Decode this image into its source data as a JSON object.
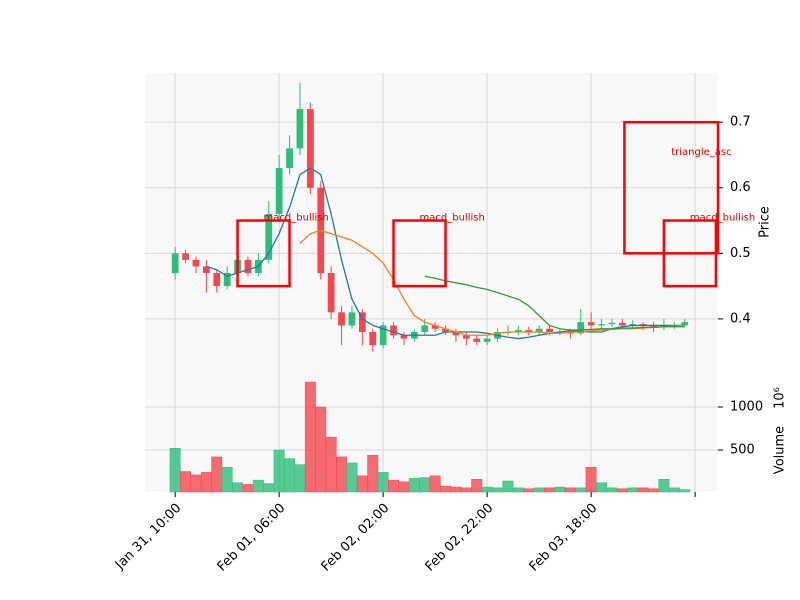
{
  "chart_data": {
    "type": "candlestick",
    "up_color": "#2ebd7a",
    "down_color": "#f5474f",
    "xlim": [
      -2.9,
      52.2
    ],
    "xticks": [
      {
        "value": 0,
        "label": "Jan 31, 10:00"
      },
      {
        "value": 10,
        "label": "Feb 01, 06:00"
      },
      {
        "value": 20,
        "label": "Feb 02, 02:00"
      },
      {
        "value": 30,
        "label": "Feb 02, 22:00"
      },
      {
        "value": 40,
        "label": "Feb 03, 18:00"
      },
      {
        "value": 50,
        "label": null
      }
    ],
    "ylabel": "Price",
    "ylim": [
      0.319,
      0.775
    ],
    "yticks": [
      0.4,
      0.5,
      0.6,
      0.7
    ],
    "volume_label": "Volume",
    "volume_offset_label": "10⁶",
    "volume_ylim": [
      12,
      1407
    ],
    "volume_yticks": [
      500,
      1000
    ],
    "grid": true,
    "open": [
      0.47,
      0.5,
      0.49,
      0.48,
      0.47,
      0.45,
      0.47,
      0.49,
      0.47,
      0.49,
      0.56,
      0.63,
      0.66,
      0.72,
      0.6,
      0.47,
      0.41,
      0.39,
      0.41,
      0.38,
      0.36,
      0.39,
      0.375,
      0.37,
      0.38,
      0.39,
      0.385,
      0.38,
      0.375,
      0.37,
      0.365,
      0.37,
      0.38,
      0.38,
      0.383,
      0.38,
      0.385,
      0.38,
      0.38,
      0.378,
      0.395,
      0.39,
      0.392,
      0.394,
      0.39,
      0.392,
      0.39,
      0.388,
      0.39,
      0.39
    ],
    "high": [
      0.51,
      0.505,
      0.495,
      0.49,
      0.475,
      0.48,
      0.5,
      0.495,
      0.5,
      0.58,
      0.65,
      0.68,
      0.76,
      0.73,
      0.61,
      0.48,
      0.42,
      0.42,
      0.415,
      0.385,
      0.395,
      0.395,
      0.38,
      0.385,
      0.4,
      0.395,
      0.39,
      0.385,
      0.38,
      0.375,
      0.375,
      0.385,
      0.39,
      0.39,
      0.388,
      0.39,
      0.39,
      0.385,
      0.385,
      0.415,
      0.41,
      0.4,
      0.4,
      0.4,
      0.398,
      0.395,
      0.395,
      0.4,
      0.395,
      0.4
    ],
    "low": [
      0.46,
      0.485,
      0.47,
      0.44,
      0.44,
      0.445,
      0.465,
      0.465,
      0.465,
      0.485,
      0.55,
      0.62,
      0.65,
      0.59,
      0.46,
      0.4,
      0.36,
      0.385,
      0.36,
      0.35,
      0.355,
      0.37,
      0.36,
      0.365,
      0.375,
      0.38,
      0.375,
      0.365,
      0.36,
      0.36,
      0.36,
      0.365,
      0.375,
      0.375,
      0.375,
      0.375,
      0.375,
      0.375,
      0.37,
      0.375,
      0.385,
      0.385,
      0.388,
      0.385,
      0.385,
      0.383,
      0.38,
      0.383,
      0.385,
      0.388
    ],
    "close": [
      0.5,
      0.49,
      0.48,
      0.47,
      0.45,
      0.47,
      0.49,
      0.47,
      0.49,
      0.56,
      0.63,
      0.66,
      0.72,
      0.6,
      0.47,
      0.41,
      0.39,
      0.41,
      0.38,
      0.36,
      0.39,
      0.375,
      0.37,
      0.38,
      0.39,
      0.385,
      0.38,
      0.375,
      0.37,
      0.365,
      0.37,
      0.38,
      0.38,
      0.383,
      0.38,
      0.385,
      0.38,
      0.38,
      0.378,
      0.395,
      0.39,
      0.392,
      0.394,
      0.39,
      0.392,
      0.39,
      0.388,
      0.39,
      0.39,
      0.395
    ],
    "volume": [
      520,
      250,
      210,
      240,
      420,
      300,
      120,
      100,
      150,
      110,
      500,
      400,
      330,
      1290,
      1000,
      650,
      420,
      350,
      200,
      440,
      240,
      150,
      130,
      170,
      180,
      200,
      80,
      70,
      60,
      160,
      70,
      60,
      140,
      60,
      50,
      60,
      60,
      70,
      60,
      60,
      300,
      120,
      60,
      50,
      60,
      60,
      50,
      160,
      60,
      40
    ],
    "moving_averages": [
      {
        "color": "#1f77b4",
        "values": [
          null,
          null,
          null,
          0.48,
          0.475,
          0.465,
          0.47,
          0.475,
          0.48,
          0.5,
          0.53,
          0.57,
          0.62,
          0.63,
          0.62,
          0.56,
          0.49,
          0.43,
          0.4,
          0.39,
          0.385,
          0.38,
          0.375,
          0.375,
          0.375,
          0.375,
          0.38,
          0.38,
          0.38,
          0.38,
          0.378,
          0.375,
          0.372,
          0.37,
          0.372,
          0.375,
          0.378,
          0.38,
          0.382,
          0.381,
          0.38,
          0.38,
          0.385,
          0.388,
          0.39,
          0.39,
          0.39,
          0.39,
          0.39,
          0.39
        ]
      },
      {
        "color": "#ff7f0e",
        "values": [
          null,
          null,
          null,
          null,
          null,
          null,
          null,
          null,
          null,
          null,
          null,
          null,
          0.515,
          0.53,
          0.535,
          0.53,
          0.525,
          0.52,
          0.51,
          0.5,
          0.485,
          0.46,
          0.43,
          0.405,
          0.395,
          0.39,
          0.385,
          0.38,
          0.375,
          0.375,
          0.375,
          0.378,
          0.38,
          0.38,
          0.38,
          0.38,
          0.378,
          0.378,
          0.38,
          0.38,
          0.382,
          0.383,
          0.384,
          0.385,
          0.385,
          0.386,
          0.387,
          0.388,
          0.389,
          0.39
        ]
      },
      {
        "color": "#2ca02c",
        "values": [
          null,
          null,
          null,
          null,
          null,
          null,
          null,
          null,
          null,
          null,
          null,
          null,
          null,
          null,
          null,
          null,
          null,
          null,
          null,
          null,
          null,
          null,
          null,
          null,
          0.465,
          0.462,
          0.458,
          0.455,
          0.452,
          0.448,
          0.445,
          0.44,
          0.435,
          0.43,
          0.42,
          0.405,
          0.39,
          0.385,
          0.383,
          0.383,
          0.384,
          0.385,
          0.385,
          0.386,
          0.386,
          0.387,
          0.387,
          0.388,
          0.388,
          0.388
        ]
      }
    ],
    "annotations": [
      {
        "label": "macd_bullish",
        "x0": 6,
        "x1": 11,
        "y0": 0.45,
        "y1": 0.55
      },
      {
        "label": "macd_bullish",
        "x0": 21,
        "x1": 26,
        "y0": 0.45,
        "y1": 0.55
      },
      {
        "label": "triangle_asc",
        "x0": 43.2,
        "x1": 52.2,
        "y0": 0.5,
        "y1": 0.7
      },
      {
        "label": "macd_bullish",
        "x0": 47,
        "x1": 52,
        "y0": 0.45,
        "y1": 0.55
      }
    ]
  }
}
